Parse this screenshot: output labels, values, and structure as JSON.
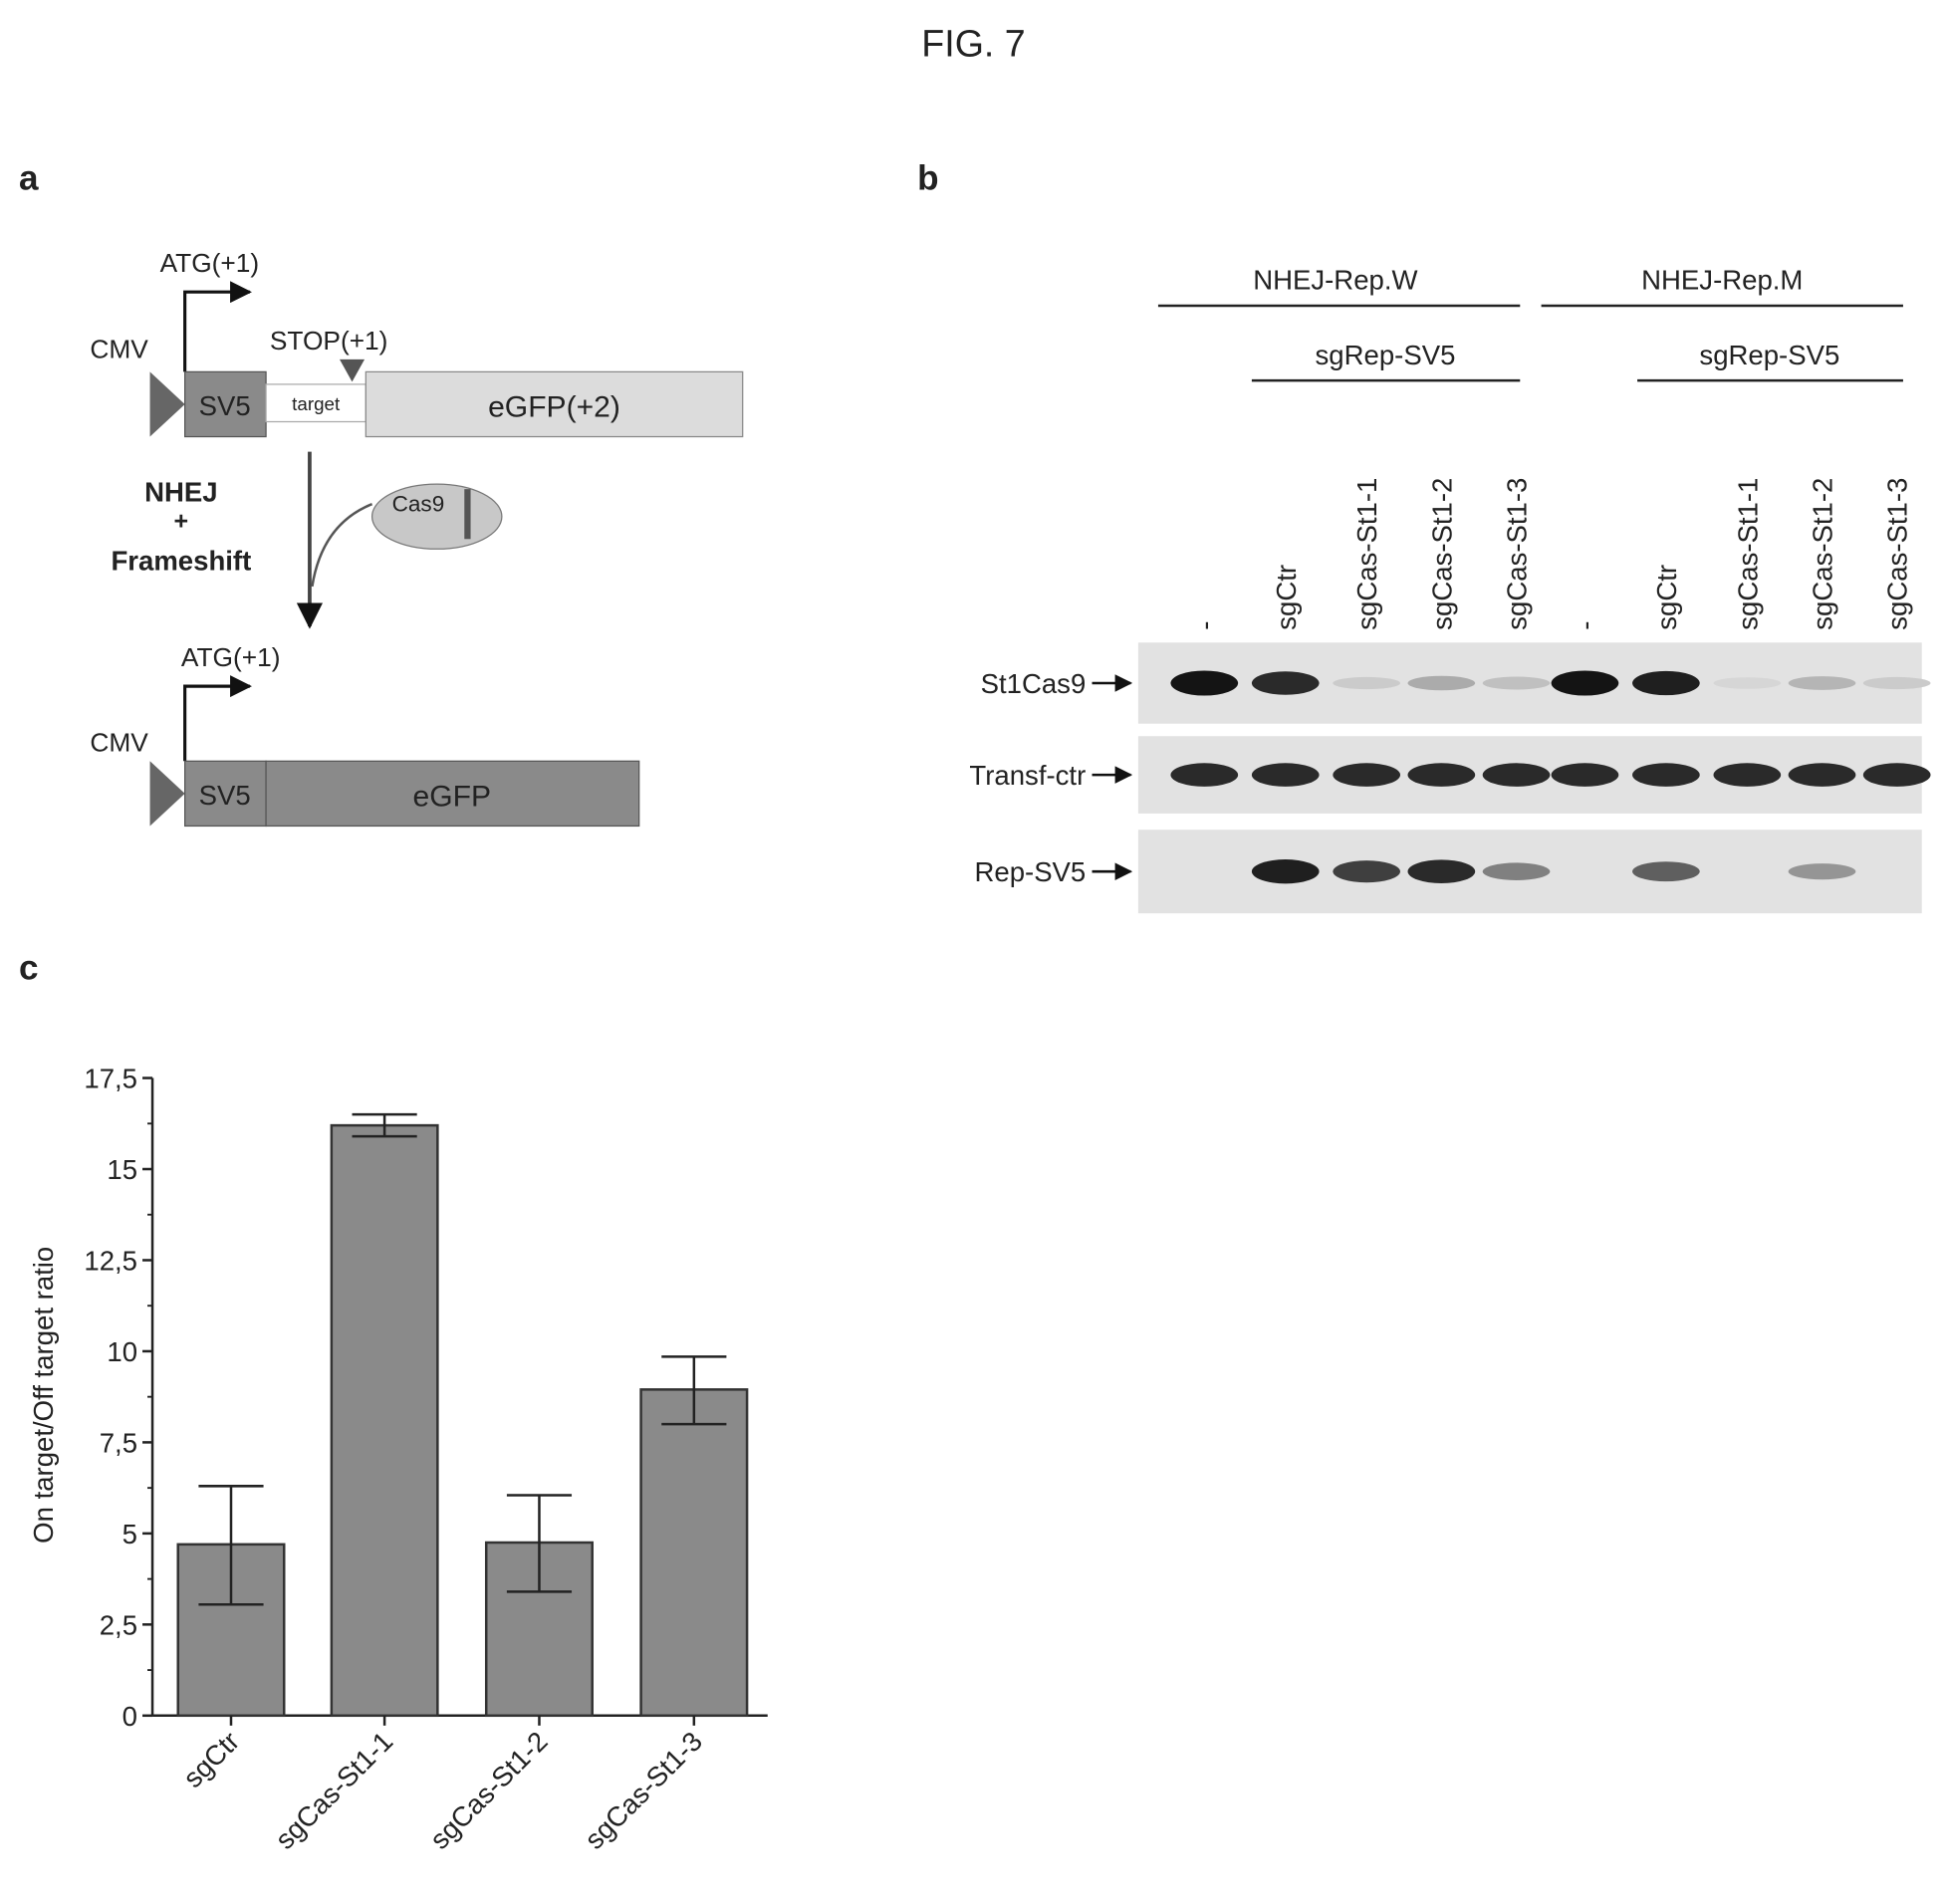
{
  "figure_title": "FIG. 7",
  "panel_a": {
    "label": "a",
    "top_construct": {
      "atg": "ATG(+1)",
      "promoter": "CMV",
      "tag": "SV5",
      "target": "target",
      "stop": "STOP(+1)",
      "reporter": "eGFP(+2)"
    },
    "process": {
      "line1": "NHEJ",
      "line2": "+",
      "line3": "Frameshift",
      "enzyme": "Cas9"
    },
    "bottom_construct": {
      "atg": "ATG(+1)",
      "promoter": "CMV",
      "tag": "SV5",
      "reporter": "eGFP"
    },
    "colors": {
      "dark_block": "#8a8a8a",
      "light_block": "#dcdcdc",
      "cloud": "#c8c8c8"
    }
  },
  "panel_b": {
    "label": "b",
    "groups": [
      {
        "label": "NHEJ-Rep.W",
        "sub": "sgRep-SV5"
      },
      {
        "label": "NHEJ-Rep.M",
        "sub": "sgRep-SV5"
      }
    ],
    "lanes": [
      "-",
      "sgCtr",
      "sgCas-St1-1",
      "sgCas-St1-2",
      "sgCas-St1-3",
      "-",
      "sgCtr",
      "sgCas-St1-1",
      "sgCas-St1-2",
      "sgCas-St1-3"
    ],
    "rows": [
      {
        "label": "St1Cas9",
        "band_intensity": [
          1,
          0.9,
          0.15,
          0.3,
          0.2,
          1,
          0.95,
          0.1,
          0.25,
          0.15
        ]
      },
      {
        "label": "Transf-ctr",
        "band_intensity": [
          0.9,
          0.9,
          0.9,
          0.9,
          0.9,
          0.9,
          0.9,
          0.9,
          0.9,
          0.9
        ]
      },
      {
        "label": "Rep-SV5",
        "band_intensity": [
          0,
          0.95,
          0.8,
          0.9,
          0.5,
          0,
          0.65,
          0,
          0.4,
          0
        ]
      }
    ]
  },
  "panel_c": {
    "label": "c"
  },
  "chart_data": {
    "type": "bar",
    "title": "",
    "xlabel": "",
    "ylabel": "On target/Off target ratio",
    "categories": [
      "sgCtr",
      "sgCas-St1-1",
      "sgCas-St1-2",
      "sgCas-St1-3"
    ],
    "values": [
      4.7,
      16.2,
      4.75,
      8.95
    ],
    "error_low": [
      3.05,
      15.9,
      3.4,
      8.0
    ],
    "error_high": [
      6.3,
      16.5,
      6.05,
      9.85
    ],
    "ylim": [
      0,
      17.5
    ],
    "yticks": [
      "0",
      "2,5",
      "5",
      "7,5",
      "10",
      "12,5",
      "15",
      "17,5"
    ],
    "grid": false,
    "bar_color": "#8a8a8a"
  }
}
